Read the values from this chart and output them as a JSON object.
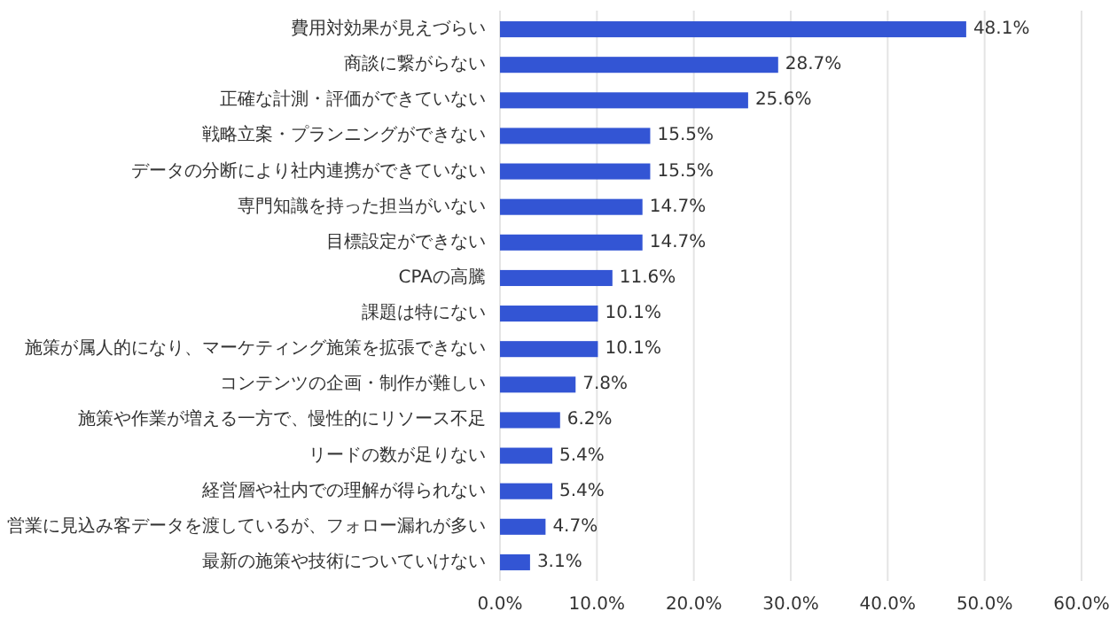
{
  "chart_data": {
    "type": "bar",
    "orientation": "horizontal",
    "categories": [
      "費用対効果が見えづらい",
      "商談に繋がらない",
      "正確な計測・評価ができていない",
      "戦略立案・プランニングができない",
      "データの分断により社内連携ができていない",
      "専門知識を持った担当がいない",
      "目標設定ができない",
      "CPAの高騰",
      "課題は特にない",
      "施策が属人的になり、マーケティング施策を拡張できない",
      "コンテンツの企画・制作が難しい",
      "施策や作業が増える一方で、慢性的にリソース不足",
      "リードの数が足りない",
      "経営層や社内での理解が得られない",
      "営業に見込み客データを渡しているが、フォロー漏れが多い",
      "最新の施策や技術についていけない"
    ],
    "values": [
      48.1,
      28.7,
      25.6,
      15.5,
      15.5,
      14.7,
      14.7,
      11.6,
      10.1,
      10.1,
      7.8,
      6.2,
      5.4,
      5.4,
      4.7,
      3.1
    ],
    "value_labels": [
      "48.1%",
      "28.7%",
      "25.6%",
      "15.5%",
      "15.5%",
      "14.7%",
      "14.7%",
      "11.6%",
      "10.1%",
      "10.1%",
      "7.8%",
      "6.2%",
      "5.4%",
      "5.4%",
      "4.7%",
      "3.1%"
    ],
    "color": "#3355d4",
    "xlim": [
      0,
      60
    ],
    "xticks": [
      {
        "value": 0,
        "label": "0.0%"
      },
      {
        "value": 10,
        "label": "10.0%"
      },
      {
        "value": 20,
        "label": "20.0%"
      },
      {
        "value": 30,
        "label": "30.0%"
      },
      {
        "value": 40,
        "label": "40.0%"
      },
      {
        "value": 50,
        "label": "50.0%"
      },
      {
        "value": 60,
        "label": "60.0%"
      }
    ],
    "grid": "x"
  }
}
